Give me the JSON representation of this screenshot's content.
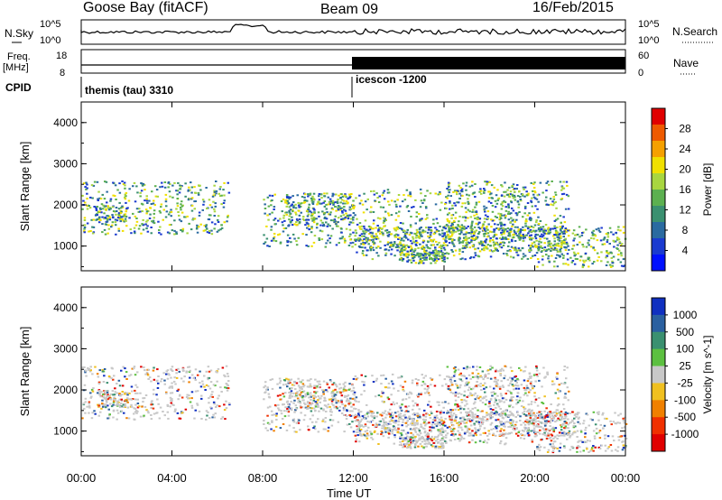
{
  "header": {
    "station": "Goose Bay (fitACF)",
    "beam": "Beam 09",
    "date": "16/Feb/2015"
  },
  "strip_labels": {
    "nsky": "N.Sky",
    "freq": "Freq.",
    "freq_unit": "[MHz]",
    "cpid": "CPID",
    "nsearch": "N.Search",
    "nave": "Nave",
    "nsky_ticks": [
      "10^5",
      "10^0"
    ],
    "nsearch_ticks": [
      "10^5",
      "10^0"
    ],
    "freq_ticks": [
      "18",
      "8"
    ],
    "nave_ticks": [
      "60",
      "0"
    ],
    "cpid_modes": [
      "themis (tau) 3310",
      "icescon -1200"
    ]
  },
  "power_colorbar": {
    "label": "Power [dB]",
    "ticks": [
      "28",
      "24",
      "20",
      "16",
      "12",
      "8",
      "4"
    ],
    "colors": [
      "#e00000",
      "#ee5a00",
      "#f5a000",
      "#f0e000",
      "#a8d640",
      "#5cb050",
      "#3a9070",
      "#2a6aa0",
      "#1a3ad0",
      "#0010ff"
    ]
  },
  "velocity_colorbar": {
    "label": "Velocity [m s^-1]",
    "ticks": [
      "1000",
      "500",
      "100",
      "25",
      "-25",
      "-100",
      "-500",
      "-1000"
    ],
    "colors": [
      "#1030c0",
      "#2a60a0",
      "#3a9070",
      "#5cc040",
      "#c8c8c8",
      "#f0c020",
      "#f08000",
      "#f03000",
      "#e00000"
    ]
  },
  "chart_data": [
    {
      "type": "heatmap",
      "title": "",
      "ylabel": "Slant Range [km]",
      "xlabel": "Time UT",
      "x_ticks": [
        "00:00",
        "04:00",
        "08:00",
        "12:00",
        "16:00",
        "20:00",
        "00:00"
      ],
      "y_ticks": [
        "1000",
        "2000",
        "3000",
        "4000"
      ],
      "xlim": [
        0,
        24
      ],
      "ylim": [
        400,
        4500
      ],
      "colorbar": "Power [dB]"
    },
    {
      "type": "heatmap",
      "title": "",
      "ylabel": "Slant Range [km]",
      "xlabel": "Time UT",
      "x_ticks": [
        "00:00",
        "04:00",
        "08:00",
        "12:00",
        "16:00",
        "20:00",
        "00:00"
      ],
      "y_ticks": [
        "1000",
        "2000",
        "3000",
        "4000"
      ],
      "xlim": [
        0,
        24
      ],
      "ylim": [
        400,
        4500
      ],
      "colorbar": "Velocity [m s^-1]"
    }
  ]
}
